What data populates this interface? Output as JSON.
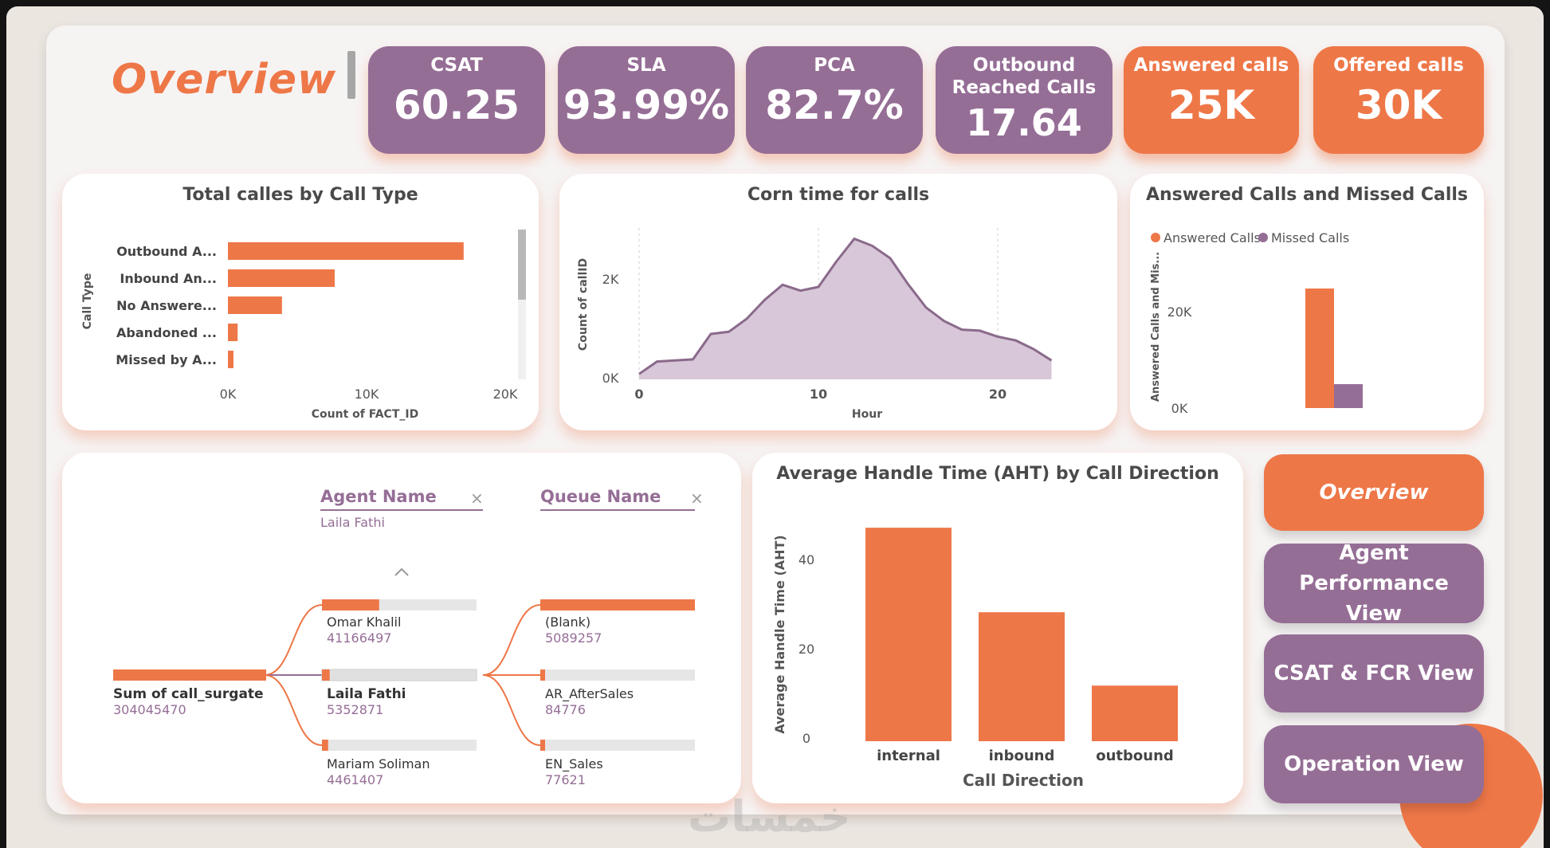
{
  "page": {
    "title": "Overview"
  },
  "kpis": [
    {
      "label": "CSAT",
      "value": "60.25",
      "variant": "purple"
    },
    {
      "label": "SLA",
      "value": "93.99%",
      "variant": "purple"
    },
    {
      "label": "PCA",
      "value": "82.7%",
      "variant": "purple"
    },
    {
      "label": "Outbound Reached Calls",
      "label_line1": "Outbound",
      "label_line2": "Reached Calls",
      "value": "17.64",
      "variant": "purple"
    },
    {
      "label": "Answered calls",
      "value": "25K",
      "variant": "orange"
    },
    {
      "label": "Offered calls",
      "value": "30K",
      "variant": "orange"
    }
  ],
  "colors": {
    "orange": "#ee7748",
    "purple": "#956e96",
    "area_fill": "#d8c7d9",
    "area_line": "#8a6a8b",
    "track": "#e6e6e6"
  },
  "call_type_chart": {
    "title": "Total calles by Call Type",
    "ylabel": "Call Type",
    "xlabel": "Count of FACT_ID",
    "ticks": [
      "0K",
      "10K",
      "20K"
    ]
  },
  "corn_chart": {
    "title": "Corn time for calls",
    "ylabel": "Count of callID",
    "xlabel": "Hour",
    "yticks": [
      "0K",
      "2K"
    ],
    "xticks": [
      "0",
      "10",
      "20"
    ]
  },
  "answered_missed_chart": {
    "title": "Answered Calls and Missed Calls",
    "legend": [
      "Answered Calls",
      "Missed Calls"
    ],
    "ylabel": "Answered Calls and Mis...",
    "yticks": [
      "0K",
      "20K"
    ]
  },
  "aht_chart": {
    "title": "Average Handle Time (AHT) by Call Direction",
    "ylabel": "Average Handle Time (AHT)",
    "xlabel": "Call Direction",
    "yticks": [
      "0",
      "20",
      "40"
    ]
  },
  "chart_data": [
    {
      "type": "bar",
      "orientation": "horizontal",
      "title": "Total calles by Call Type",
      "xlabel": "Count of FACT_ID",
      "ylabel": "Call Type",
      "categories": [
        "Outbound A...",
        "Inbound An...",
        "No Answere...",
        "Abandoned ...",
        "Missed by A..."
      ],
      "values": [
        17000,
        7700,
        3900,
        700,
        400
      ],
      "xlim": [
        0,
        20000
      ]
    },
    {
      "type": "area",
      "title": "Corn time for calls",
      "xlabel": "Hour",
      "ylabel": "Count of callID",
      "x": [
        0,
        1,
        2,
        3,
        4,
        5,
        6,
        7,
        8,
        9,
        10,
        11,
        12,
        13,
        14,
        15,
        16,
        17,
        18,
        19,
        20,
        21,
        22,
        23
      ],
      "values": [
        100,
        330,
        350,
        370,
        840,
        880,
        1120,
        1470,
        1750,
        1640,
        1710,
        2180,
        2600,
        2470,
        2240,
        1760,
        1330,
        1080,
        920,
        900,
        790,
        720,
        560,
        350
      ],
      "ylim": [
        0,
        2800
      ],
      "xlim": [
        0,
        23
      ]
    },
    {
      "type": "bar",
      "title": "Answered Calls and Missed Calls",
      "ylabel": "Answered Calls and Mis...",
      "series": [
        {
          "name": "Answered Calls",
          "values": [
            25000
          ]
        },
        {
          "name": "Missed Calls",
          "values": [
            5000
          ]
        }
      ],
      "ylim": [
        0,
        30000
      ]
    },
    {
      "type": "bar",
      "title": "Average Handle Time (AHT) by Call Direction",
      "xlabel": "Call Direction",
      "ylabel": "Average Handle Time (AHT)",
      "categories": [
        "internal",
        "inbound",
        "outbound"
      ],
      "values": [
        48,
        29,
        12.5
      ],
      "ylim": [
        0,
        50
      ]
    }
  ],
  "decomp_tree": {
    "root": {
      "label": "Sum of call_surgate",
      "value": "304045470",
      "fraction": 1.0
    },
    "level1": {
      "header": "Agent Name",
      "selected": "Laila Fathi",
      "items": [
        {
          "label": "Omar Khalil",
          "value": "41166497",
          "fraction": 0.37
        },
        {
          "label": "Laila Fathi",
          "value": "5352871",
          "fraction": 0.05
        },
        {
          "label": "Mariam Soliman",
          "value": "4461407",
          "fraction": 0.04
        }
      ]
    },
    "level2": {
      "header": "Queue Name",
      "items": [
        {
          "label": "(Blank)",
          "value": "5089257",
          "fraction": 1.0
        },
        {
          "label": "AR_AfterSales",
          "value": "84776",
          "fraction": 0.015
        },
        {
          "label": "EN_Sales",
          "value": "77621",
          "fraction": 0.014
        }
      ]
    },
    "close_symbol": "×"
  },
  "nav": [
    {
      "label": "Overview",
      "active": true
    },
    {
      "label": "Agent Performance View",
      "active": false
    },
    {
      "label": "CSAT & FCR View",
      "active": false
    },
    {
      "label": "Operation View",
      "active": false
    }
  ],
  "watermark": "خمسات"
}
